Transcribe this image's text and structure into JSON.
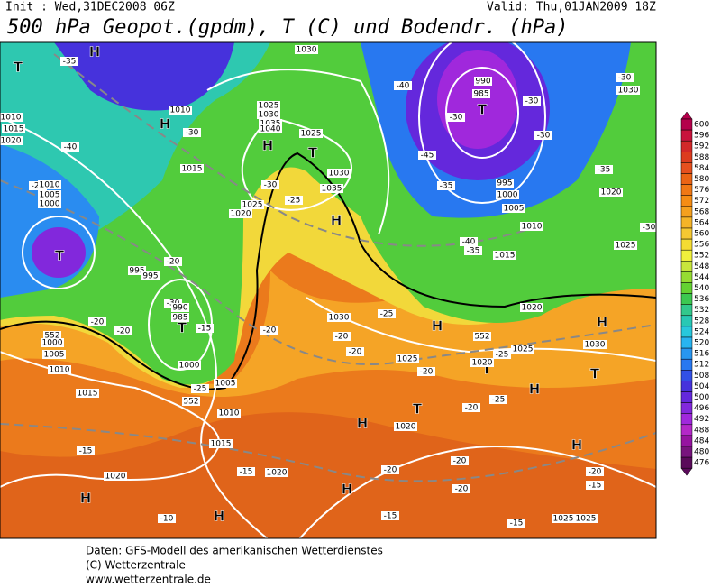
{
  "header": {
    "init": "Init : Wed,31DEC2008 06Z",
    "valid": "Valid: Thu,01JAN2009 18Z",
    "title": "500 hPa Geopot.(gpdm), T (C) und Bodendr. (hPa)"
  },
  "colorbar": {
    "levels": [
      600,
      596,
      592,
      588,
      584,
      580,
      576,
      572,
      568,
      564,
      560,
      556,
      552,
      548,
      544,
      540,
      536,
      532,
      528,
      524,
      520,
      516,
      512,
      508,
      504,
      500,
      496,
      492,
      488,
      484,
      480,
      476
    ],
    "colors": [
      "#b4004b",
      "#c8143c",
      "#d22828",
      "#dc3c1e",
      "#e6501e",
      "#eb6414",
      "#f07814",
      "#f58c14",
      "#f5a01e",
      "#f5b428",
      "#f5c832",
      "#f5dc32",
      "#f0f03c",
      "#c8e63c",
      "#96dc32",
      "#64d232",
      "#3cc850",
      "#32c88c",
      "#28c8b4",
      "#28c8dc",
      "#28b4f0",
      "#2896f0",
      "#2878f0",
      "#3250e6",
      "#4632dc",
      "#6428dc",
      "#8228dc",
      "#a028dc",
      "#b428c8",
      "#9614a0",
      "#78147d",
      "#5a0a5a"
    ]
  },
  "map": {
    "labels": [
      "H",
      "T",
      "-35",
      "1010",
      "1015",
      "1020",
      "-40",
      "H",
      "1010",
      "-30",
      "1015",
      "-25",
      "1010",
      "1005",
      "1000",
      "T",
      "H",
      "1025",
      "1030",
      "1035",
      "1040",
      "1025",
      "T",
      "1030",
      "1035",
      "-30",
      "1025",
      "1020",
      "H",
      "-25",
      "995",
      "995",
      "-20",
      "-30",
      "990",
      "985",
      "T",
      "-15",
      "1000",
      "1005",
      "1010",
      "1015",
      "1020",
      "-15",
      "H",
      "-10",
      "H",
      "-15",
      "1020",
      "H",
      "H",
      "T",
      "1020",
      "-20",
      "-20",
      "-20",
      "-15",
      "-15",
      "1025",
      "1025",
      "H",
      "-20",
      "-15",
      "H",
      "T",
      "T",
      "-25",
      "-20",
      "-25",
      "1025",
      "1030",
      "H",
      "1020",
      "H",
      "1030",
      "-25",
      "-20",
      "-20",
      "1025",
      "-20",
      "1020",
      "T",
      "990",
      "985",
      "-30",
      "-40",
      "-30",
      "-30",
      "-45",
      "-35",
      "995",
      "1000",
      "1005",
      "1010",
      "1015",
      "-40",
      "-35",
      "-30",
      "1030",
      "-35",
      "1020",
      "-30",
      "1025",
      "552",
      "552",
      "552",
      "1000",
      "1005",
      "1010",
      "1015",
      "-20",
      "-20",
      "-20",
      "-25",
      "1030"
    ]
  },
  "footer": {
    "lines": [
      "Daten: GFS-Modell des amerikanischen Wetterdienstes",
      "(C) Wetterzentrale",
      "www.wetterzentrale.de"
    ]
  }
}
